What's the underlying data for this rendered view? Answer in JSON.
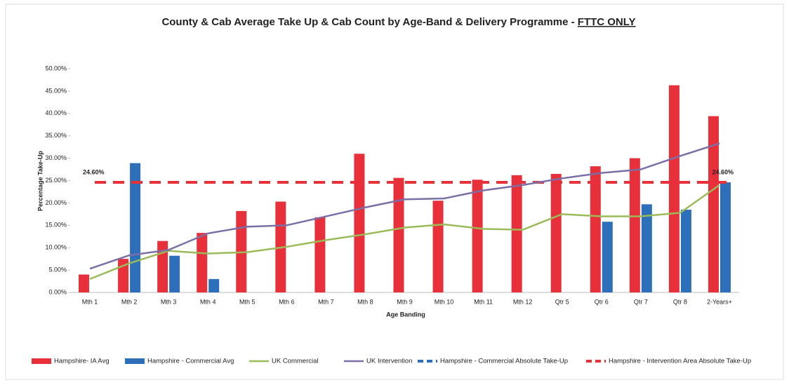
{
  "chart_data": {
    "type": "bar-line",
    "title": "County & Cab Average Take Up & Cab Count by Age-Band & Delivery Programme -",
    "title_underlined": "FTTC ONLY",
    "y_label": "Percentage Take-Up",
    "x_label": "Age Banding",
    "categories": [
      "Mth 1",
      "Mth 2",
      "Mth 3",
      "Mth 4",
      "Mth 5",
      "Mth 6",
      "Mth 7",
      "Mth 8",
      "Mth 9",
      "Mth 10",
      "Mth 11",
      "Mth 12",
      "Qtr 5",
      "Qtr 6",
      "Qtr 7",
      "Qtr 8",
      "2-Years+"
    ],
    "ylim": [
      0,
      50
    ],
    "yticks": [
      {
        "value": 0,
        "label": "0.00%"
      },
      {
        "value": 5,
        "label": "5.00%"
      },
      {
        "value": 10,
        "label": "10.00%"
      },
      {
        "value": 15,
        "label": "15.00%"
      },
      {
        "value": 20,
        "label": "20.00%"
      },
      {
        "value": 25,
        "label": "25.00%"
      },
      {
        "value": 30,
        "label": "30.00%"
      },
      {
        "value": 35,
        "label": "35.00%"
      },
      {
        "value": 40,
        "label": "40.00%"
      },
      {
        "value": 45,
        "label": "45.00%"
      },
      {
        "value": 50,
        "label": "50.00%"
      }
    ],
    "series": [
      {
        "name": "Hampshire- IA Avg",
        "kind": "bar",
        "color": "#e8303a",
        "values": [
          4.0,
          7.5,
          11.5,
          13.3,
          18.2,
          20.3,
          16.8,
          31.0,
          25.6,
          20.5,
          25.2,
          26.2,
          26.5,
          28.2,
          30.0,
          46.3,
          39.4
        ]
      },
      {
        "name": "Hampshire - Commercial Avg",
        "kind": "bar",
        "color": "#2e6fba",
        "values": [
          0,
          28.9,
          8.2,
          3.0,
          0,
          0,
          0,
          0,
          0,
          0,
          0,
          0,
          0,
          15.8,
          19.7,
          18.5,
          24.6
        ]
      },
      {
        "name": "UK Commercial",
        "kind": "line",
        "color": "#9bbb59",
        "values": [
          3.0,
          6.5,
          9.3,
          8.7,
          9.0,
          10.2,
          11.7,
          13.0,
          14.5,
          15.2,
          14.2,
          14.0,
          17.5,
          17.0,
          17.0,
          17.8,
          24.0
        ]
      },
      {
        "name": "UK Intervention",
        "kind": "line",
        "color": "#7b6fa6",
        "values": [
          5.3,
          8.3,
          9.5,
          13.2,
          14.7,
          15.0,
          17.0,
          19.0,
          20.8,
          21.0,
          22.8,
          24.0,
          25.5,
          26.7,
          27.5,
          30.5,
          33.3
        ]
      }
    ],
    "reference_lines": [
      {
        "name": "Hampshire - Commercial Absolute Take-Up",
        "color": "#2e6fba",
        "value": 24.6,
        "value_label": "24.60%",
        "label_side": "right"
      },
      {
        "name": "Hampshire - Intervention Area Absolute Take-Up",
        "color": "#e8303a",
        "value": 24.6,
        "value_label": "24.60%",
        "label_side": "left"
      }
    ]
  }
}
